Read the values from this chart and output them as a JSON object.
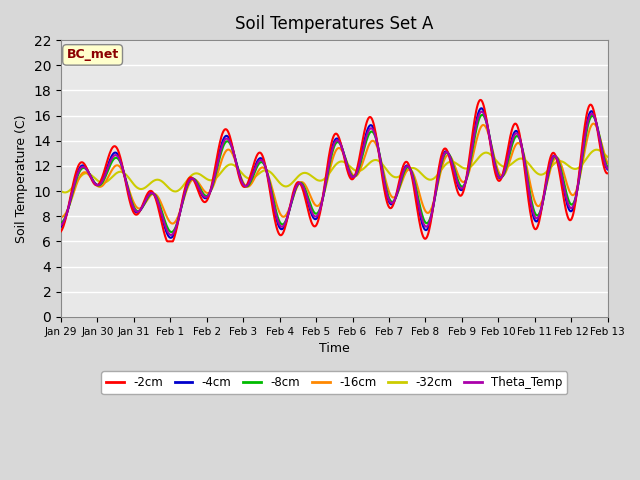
{
  "title": "Soil Temperatures Set A",
  "xlabel": "Time",
  "ylabel": "Soil Temperature (C)",
  "ylim": [
    0,
    22
  ],
  "yticks": [
    0,
    2,
    4,
    6,
    8,
    10,
    12,
    14,
    16,
    18,
    20,
    22
  ],
  "annotation": "BC_met",
  "annotation_color": "#8B0000",
  "annotation_bg": "#FFFFCC",
  "x_labels": [
    "Jan 29",
    "Jan 30",
    "Jan 31",
    "Feb 1",
    "Feb 2",
    "Feb 3",
    "Feb 4",
    "Feb 5",
    "Feb 6",
    "Feb 7",
    "Feb 8",
    "Feb 9",
    "Feb 10",
    "Feb 11",
    "Feb 12",
    "Feb 13"
  ],
  "colors": {
    "-2cm": "#FF0000",
    "-4cm": "#0000CC",
    "-8cm": "#00BB00",
    "-16cm": "#FF8800",
    "-32cm": "#CCCC00",
    "Theta_Temp": "#AA00AA"
  },
  "line_width": 1.5,
  "fig_bg": "#D8D8D8",
  "plot_bg": "#E8E8E8",
  "legend_entries": [
    "-2cm",
    "-4cm",
    "-8cm",
    "-16cm",
    "-32cm",
    "Theta_Temp"
  ],
  "legend_colors": [
    "#FF0000",
    "#0000CC",
    "#00BB00",
    "#FF8800",
    "#CCCC00",
    "#AA00AA"
  ]
}
